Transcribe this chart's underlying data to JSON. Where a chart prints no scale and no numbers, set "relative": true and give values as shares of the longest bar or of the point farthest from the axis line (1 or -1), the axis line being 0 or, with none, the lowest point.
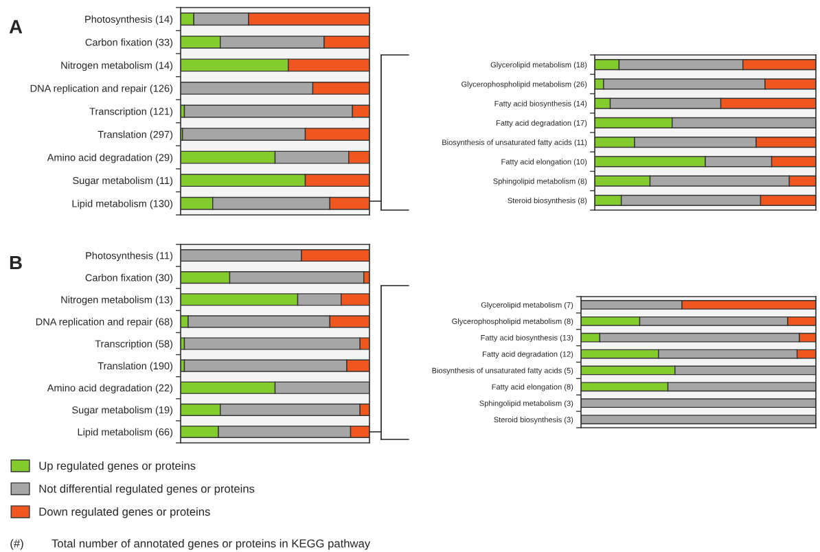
{
  "chart_data": [
    {
      "type": "bar",
      "orientation": "horizontal",
      "stacked": true,
      "relative": true,
      "title": "A",
      "legend": "bottom",
      "categories": [
        "Photosynthesis (14)",
        "Carbon fixation (33)",
        "Nitrogen metabolism (14)",
        "DNA replication and repair (126)",
        "Transcription (121)",
        "Translation (297)",
        "Amino acid degradation (29)",
        "Sugar metabolism (11)",
        "Lipid metabolism (130)"
      ],
      "series": [
        {
          "name": "Up regulated genes or proteins",
          "color": "#84cc2e",
          "values": [
            0.07,
            0.21,
            0.57,
            0,
            0.02,
            0.01,
            0.5,
            0.66,
            0.17
          ]
        },
        {
          "name": "Not differential regulated genes or proteins",
          "color": "#a6a6a6",
          "values": [
            0.29,
            0.55,
            0,
            0.7,
            0.89,
            0.65,
            0.39,
            0,
            0.62
          ]
        },
        {
          "name": "Down regulated genes or proteins",
          "color": "#f0561f",
          "values": [
            0.64,
            0.24,
            0.43,
            0.3,
            0.09,
            0.34,
            0.11,
            0.34,
            0.21
          ]
        }
      ],
      "annotations": [
        "(#)",
        "Total number of annotated genes or proteins in KEGG pathway"
      ]
    },
    {
      "type": "bar",
      "orientation": "horizontal",
      "stacked": true,
      "relative": true,
      "categories": [
        "Glycerolipid metabolism (18)",
        "Glycerophospholipid metabolism (26)",
        "Fatty acid biosynthesis (14)",
        "Fatty acid degradation (17)",
        "Biosynthesis of unsaturated fatty acids (11)",
        "Fatty acid elongation (10)",
        "Sphingolipid metabolism (8)",
        "Steroid biosynthesis (8)"
      ],
      "series": [
        {
          "color": "#84cc2e",
          "values": [
            0.11,
            0.04,
            0.07,
            0.35,
            0.18,
            0.5,
            0.25,
            0.12
          ]
        },
        {
          "color": "#a6a6a6",
          "values": [
            0.56,
            0.73,
            0.5,
            0.65,
            0.55,
            0.3,
            0.63,
            0.63
          ]
        },
        {
          "color": "#f0561f",
          "values": [
            0.33,
            0.23,
            0.43,
            0,
            0.27,
            0.2,
            0.12,
            0.25
          ]
        }
      ]
    },
    {
      "type": "bar",
      "orientation": "horizontal",
      "stacked": true,
      "relative": true,
      "title": "B",
      "categories": [
        "Photosynthesis (11)",
        "Carbon fixation (30)",
        "Nitrogen metabolism (13)",
        "DNA replication and repair (68)",
        "Transcription (58)",
        "Translation (190)",
        "Amino acid degradation (22)",
        "Sugar metabolism (19)",
        "Lipid metabolism (66)"
      ],
      "series": [
        {
          "color": "#84cc2e",
          "values": [
            0,
            0.26,
            0.62,
            0.04,
            0.02,
            0.02,
            0.5,
            0.21,
            0.2
          ]
        },
        {
          "color": "#a6a6a6",
          "values": [
            0.64,
            0.71,
            0.23,
            0.75,
            0.93,
            0.86,
            0.5,
            0.74,
            0.7
          ]
        },
        {
          "color": "#f0561f",
          "values": [
            0.36,
            0.03,
            0.15,
            0.21,
            0.05,
            0.12,
            0,
            0.05,
            0.1
          ]
        }
      ]
    },
    {
      "type": "bar",
      "orientation": "horizontal",
      "stacked": true,
      "relative": true,
      "categories": [
        "Glycerolipid metabolism (7)",
        "Glycerophospholipid metabolism (8)",
        "Fatty acid biosynthesis (13)",
        "Fatty acid degradation (12)",
        "Biosynthesis of unsaturated fatty acids (5)",
        "Fatty acid elongation (8)",
        "Sphingolipid metabolism (3)",
        "Steroid biosynthesis (3)"
      ],
      "series": [
        {
          "color": "#84cc2e",
          "values": [
            0,
            0.25,
            0.08,
            0.33,
            0.4,
            0.37,
            0,
            0
          ]
        },
        {
          "color": "#a6a6a6",
          "values": [
            0.43,
            0.63,
            0.85,
            0.59,
            0.6,
            0.63,
            1,
            1
          ]
        },
        {
          "color": "#f0561f",
          "values": [
            0.57,
            0.12,
            0.07,
            0.08,
            0,
            0,
            0,
            0
          ]
        }
      ]
    }
  ]
}
